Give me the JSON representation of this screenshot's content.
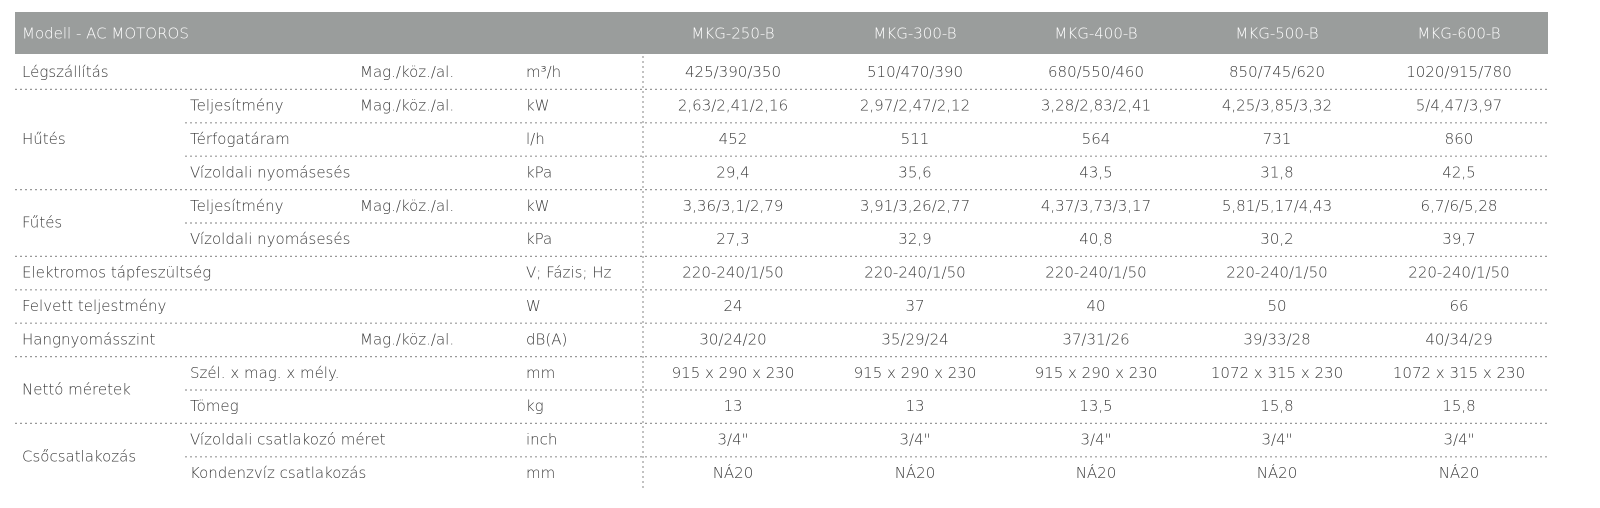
{
  "header": {
    "title": "Modell - AC MOTOROS",
    "models": [
      "MKG-250-B",
      "MKG-300-B",
      "MKG-400-B",
      "MKG-500-B",
      "MKG-600-B"
    ]
  },
  "groups": [
    {
      "label": "Légszállítás",
      "rows": [
        {
          "qualifier": "Mag./köz./al.",
          "unit": "m³/h",
          "values": [
            "425/390/350",
            "510/470/390",
            "680/550/460",
            "850/745/620",
            "1020/915/780"
          ]
        }
      ]
    },
    {
      "label": "Hűtés",
      "rows": [
        {
          "sub": "Teljesítmény",
          "qualifier": "Mag./köz./al.",
          "unit": "kW",
          "values": [
            "2,63/2,41/2,16",
            "2,97/2,47/2,12",
            "3,28/2,83/2,41",
            "4,25/3,85/3,32",
            "5/4,47/3,97"
          ]
        },
        {
          "sub": "Térfogatáram",
          "unit": "l/h",
          "values": [
            "452",
            "511",
            "564",
            "731",
            "860"
          ]
        },
        {
          "sub": "Vízoldali nyomásesés",
          "unit": "kPa",
          "values": [
            "29,4",
            "35,6",
            "43,5",
            "31,8",
            "42,5"
          ]
        }
      ]
    },
    {
      "label": "Fűtés",
      "rows": [
        {
          "sub": "Teljesítmény",
          "qualifier": "Mag./köz./al.",
          "unit": "kW",
          "values": [
            "3,36/3,1/2,79",
            "3,91/3,26/2,77",
            "4,37/3,73/3,17",
            "5,81/5,17/4,43",
            "6,7/6/5,28"
          ]
        },
        {
          "sub": "Vízoldali nyomásesés",
          "unit": "kPa",
          "values": [
            "27,3",
            "32,9",
            "40,8",
            "30,2",
            "39,7"
          ]
        }
      ]
    },
    {
      "label": "Elektromos tápfeszültség",
      "rows": [
        {
          "unit": "V; Fázis; Hz",
          "values": [
            "220-240/1/50",
            "220-240/1/50",
            "220-240/1/50",
            "220-240/1/50",
            "220-240/1/50"
          ]
        }
      ]
    },
    {
      "label": "Felvett teljestmény",
      "rows": [
        {
          "unit": "W",
          "values": [
            "24",
            "37",
            "40",
            "50",
            "66"
          ]
        }
      ]
    },
    {
      "label": "Hangnyomásszint",
      "rows": [
        {
          "qualifier": "Mag./köz./al.",
          "unit": "dB(A)",
          "values": [
            "30/24/20",
            "35/29/24",
            "37/31/26",
            "39/33/28",
            "40/34/29"
          ]
        }
      ]
    },
    {
      "label": "Nettó méretek",
      "rows": [
        {
          "sub": "Szél. x mag. x mély.",
          "unit": "mm",
          "values": [
            "915 x 290 x 230",
            "915 x 290 x 230",
            "915 x 290 x 230",
            "1072 x 315 x 230",
            "1072 x 315 x 230"
          ]
        },
        {
          "sub": "Tömeg",
          "unit": "kg",
          "values": [
            "13",
            "13",
            "13,5",
            "15,8",
            "15,8"
          ]
        }
      ]
    },
    {
      "label": "Csőcsatlakozás",
      "rows": [
        {
          "sub": "Vízoldali csatlakozó méret",
          "unit": "inch",
          "values": [
            "3/4\"",
            "3/4\"",
            "3/4\"",
            "3/4\"",
            "3/4\""
          ]
        },
        {
          "sub": "Kondenzvíz csatlakozás",
          "unit": "mm",
          "values": [
            "NÁ20",
            "NÁ20",
            "NÁ20",
            "NÁ20",
            "NÁ20"
          ]
        }
      ]
    }
  ]
}
